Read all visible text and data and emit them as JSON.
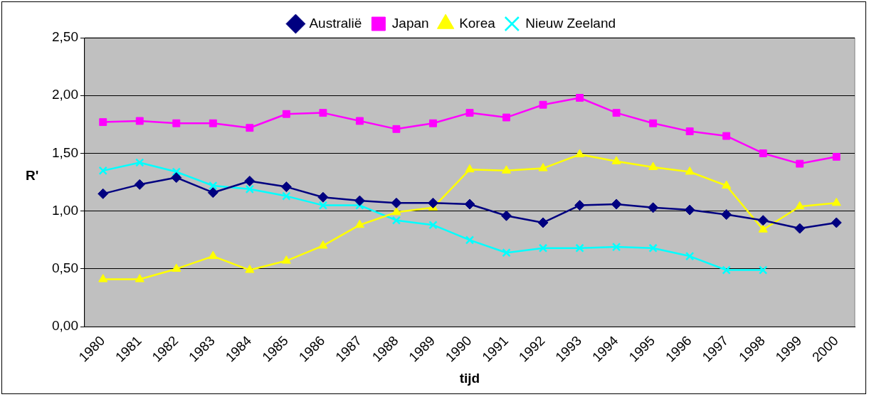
{
  "chart_data": {
    "type": "line",
    "xlabel": "tijd",
    "ylabel": "R'",
    "categories": [
      "1980",
      "1981",
      "1982",
      "1983",
      "1984",
      "1985",
      "1986",
      "1987",
      "1988",
      "1989",
      "1990",
      "1991",
      "1992",
      "1993",
      "1994",
      "1995",
      "1996",
      "1997",
      "1998",
      "1999",
      "2000"
    ],
    "series": [
      {
        "name": "Australië",
        "color": "#000080",
        "marker": "diamond",
        "values": [
          1.15,
          1.23,
          1.29,
          1.16,
          1.26,
          1.21,
          1.12,
          1.09,
          1.07,
          1.07,
          1.06,
          0.96,
          0.9,
          1.05,
          1.06,
          1.03,
          1.01,
          0.97,
          0.92,
          0.85,
          0.9
        ]
      },
      {
        "name": "Japan",
        "color": "#ff00ff",
        "marker": "square",
        "values": [
          1.77,
          1.78,
          1.76,
          1.76,
          1.72,
          1.84,
          1.85,
          1.78,
          1.71,
          1.76,
          1.85,
          1.81,
          1.92,
          1.98,
          1.85,
          1.76,
          1.69,
          1.65,
          1.5,
          1.41,
          1.47
        ]
      },
      {
        "name": "Korea",
        "color": "#ffff00",
        "marker": "triangle",
        "values": [
          0.41,
          0.41,
          0.5,
          0.61,
          0.49,
          0.57,
          0.7,
          0.88,
          0.99,
          1.03,
          1.36,
          1.35,
          1.37,
          1.49,
          1.43,
          1.38,
          1.34,
          1.22,
          0.84,
          1.04,
          1.07
        ]
      },
      {
        "name": "Nieuw Zeeland",
        "color": "#00ffff",
        "marker": "cross",
        "values": [
          1.35,
          1.42,
          1.34,
          1.22,
          1.19,
          1.13,
          1.05,
          1.05,
          0.92,
          0.88,
          0.75,
          0.64,
          0.68,
          0.68,
          0.69,
          0.68,
          0.61,
          0.49,
          0.49,
          null,
          null
        ]
      }
    ],
    "ylim": [
      0,
      2.5
    ],
    "yticks": [
      {
        "value": 0,
        "label": "0,00"
      },
      {
        "value": 0.5,
        "label": "0,50"
      },
      {
        "value": 1,
        "label": "1,00"
      },
      {
        "value": 1.5,
        "label": "1,50"
      },
      {
        "value": 2,
        "label": "2,00"
      },
      {
        "value": 2.5,
        "label": "2,50"
      }
    ],
    "grid": "y",
    "legend": "top",
    "line_style": "solid"
  }
}
